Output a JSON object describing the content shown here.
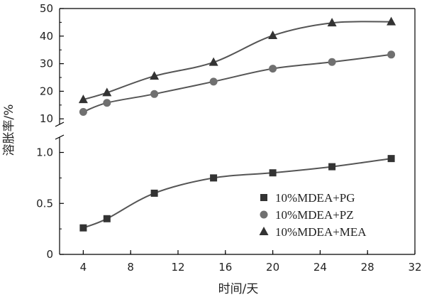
{
  "chart_data": {
    "type": "line",
    "xlabel": "时间/天",
    "ylabel": "溶胀率/%",
    "x_ticks": [
      "4",
      "8",
      "12",
      "16",
      "20",
      "24",
      "28",
      "32"
    ],
    "xlim": [
      2,
      32
    ],
    "y_axis_break": true,
    "y_ticks_lower": [
      "0",
      "0.5",
      "1.0"
    ],
    "y_ticks_upper": [
      "10",
      "20",
      "30",
      "40",
      "50"
    ],
    "ylim_lower": [
      0,
      1.15
    ],
    "ylim_upper": [
      8,
      50
    ],
    "grid": false,
    "legend_position": "lower-right",
    "series": [
      {
        "name": "10%MDEA+PG",
        "marker": "square",
        "x": [
          4,
          6,
          10,
          15,
          20,
          25,
          30
        ],
        "values": [
          0.26,
          0.35,
          0.6,
          0.75,
          0.8,
          0.86,
          0.94
        ]
      },
      {
        "name": "10%MDEA+PZ",
        "marker": "circle",
        "x": [
          4,
          6,
          10,
          15,
          20,
          25,
          30
        ],
        "values": [
          12.5,
          15.8,
          19.0,
          23.5,
          28.2,
          30.6,
          33.3
        ]
      },
      {
        "name": "10%MDEA+MEA",
        "marker": "triangle",
        "x": [
          4,
          6,
          10,
          15,
          20,
          25,
          30
        ],
        "values": [
          17.0,
          19.5,
          25.5,
          30.5,
          40.2,
          44.8,
          45.2
        ]
      }
    ],
    "colors": {
      "line": "#555555",
      "marker": "#333333",
      "circle_marker": "#707070",
      "axis": "#000000"
    }
  }
}
